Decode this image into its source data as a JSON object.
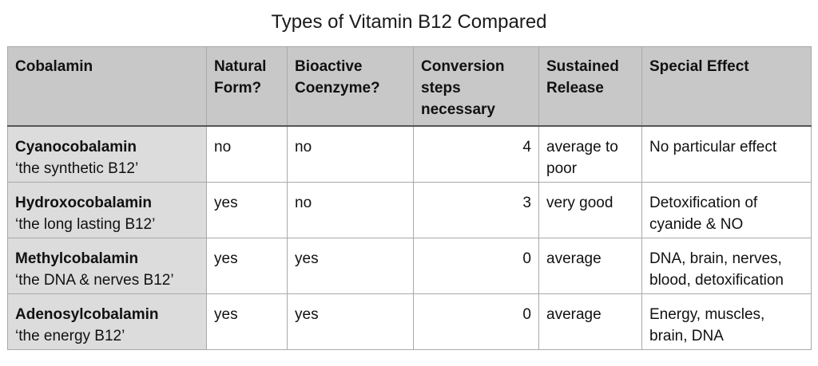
{
  "title": "Types of Vitamin B12 Compared",
  "table": {
    "headers": [
      "Cobalamin",
      "Natural Form?",
      "Bioactive Coenzyme?",
      "Conversion steps necessary",
      "Sustained Release",
      "Special Effect"
    ],
    "rows": [
      {
        "name": "Cyanocobalamin",
        "subtitle": "‘the synthetic B12’",
        "natural": "no",
        "bioactive": "no",
        "steps": "4",
        "release": "average to poor",
        "effect": "No particular effect"
      },
      {
        "name": "Hydroxocobalamin",
        "subtitle": "‘the long lasting B12’",
        "natural": "yes",
        "bioactive": "no",
        "steps": "3",
        "release": "very good",
        "effect": "Detoxification of cyanide & NO"
      },
      {
        "name": "Methylcobalamin",
        "subtitle": "‘the DNA & nerves B12’",
        "natural": "yes",
        "bioactive": "yes",
        "steps": "0",
        "release": "average",
        "effect": "DNA, brain, nerves, blood, detoxification"
      },
      {
        "name": "Adenosylcobalamin",
        "subtitle": "‘the energy B12’",
        "natural": "yes",
        "bioactive": "yes",
        "steps": "0",
        "release": "average",
        "effect": "Energy, muscles, brain, DNA"
      }
    ]
  }
}
